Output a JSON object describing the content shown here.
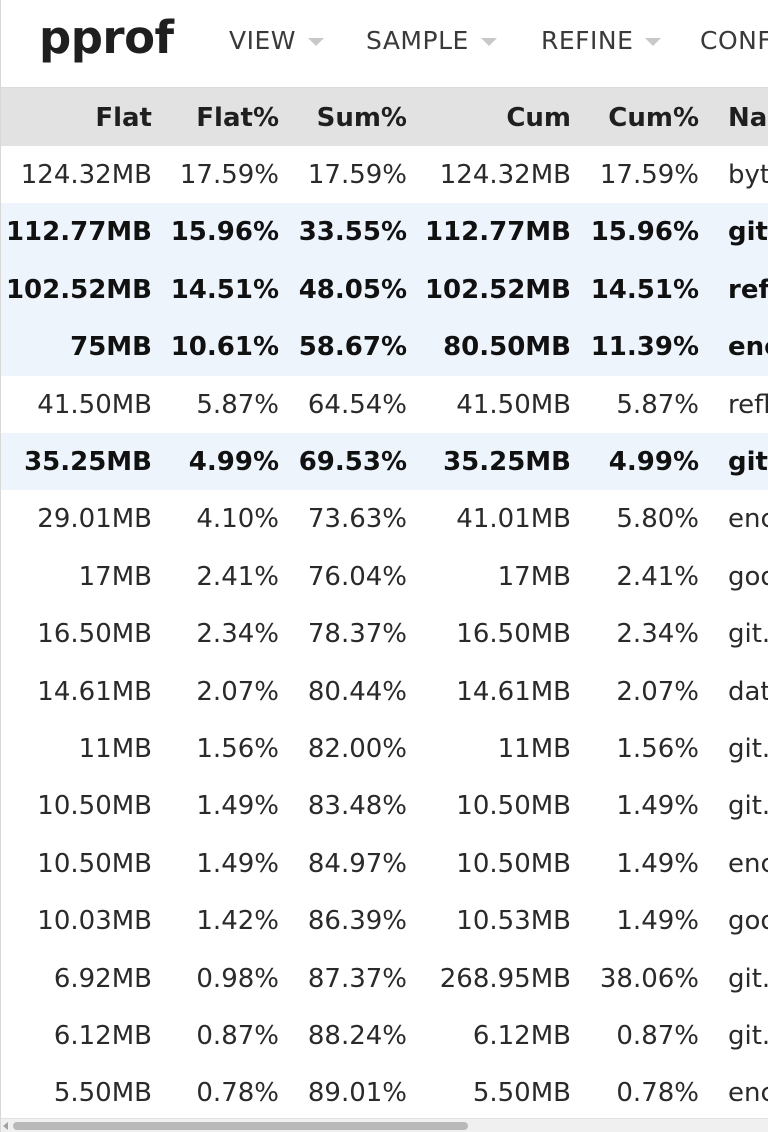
{
  "header": {
    "logo": "pprof",
    "menus": [
      {
        "label": "VIEW"
      },
      {
        "label": "SAMPLE"
      },
      {
        "label": "REFINE"
      },
      {
        "label": "CONF"
      }
    ]
  },
  "table": {
    "columns": [
      "Flat",
      "Flat%",
      "Sum%",
      "Cum",
      "Cum%",
      "Nar"
    ],
    "rows": [
      {
        "flat": "124.32MB",
        "flat_pct": "17.59%",
        "sum_pct": "17.59%",
        "cum": "124.32MB",
        "cum_pct": "17.59%",
        "name": "byt",
        "bold": false,
        "highlight": false
      },
      {
        "flat": "112.77MB",
        "flat_pct": "15.96%",
        "sum_pct": "33.55%",
        "cum": "112.77MB",
        "cum_pct": "15.96%",
        "name": "git.",
        "bold": true,
        "highlight": true
      },
      {
        "flat": "102.52MB",
        "flat_pct": "14.51%",
        "sum_pct": "48.05%",
        "cum": "102.52MB",
        "cum_pct": "14.51%",
        "name": "refl",
        "bold": true,
        "highlight": true
      },
      {
        "flat": "75MB",
        "flat_pct": "10.61%",
        "sum_pct": "58.67%",
        "cum": "80.50MB",
        "cum_pct": "11.39%",
        "name": "enc",
        "bold": true,
        "highlight": true
      },
      {
        "flat": "41.50MB",
        "flat_pct": "5.87%",
        "sum_pct": "64.54%",
        "cum": "41.50MB",
        "cum_pct": "5.87%",
        "name": "refl",
        "bold": false,
        "highlight": false
      },
      {
        "flat": "35.25MB",
        "flat_pct": "4.99%",
        "sum_pct": "69.53%",
        "cum": "35.25MB",
        "cum_pct": "4.99%",
        "name": "git.",
        "bold": true,
        "highlight": true
      },
      {
        "flat": "29.01MB",
        "flat_pct": "4.10%",
        "sum_pct": "73.63%",
        "cum": "41.01MB",
        "cum_pct": "5.80%",
        "name": "enc",
        "bold": false,
        "highlight": false
      },
      {
        "flat": "17MB",
        "flat_pct": "2.41%",
        "sum_pct": "76.04%",
        "cum": "17MB",
        "cum_pct": "2.41%",
        "name": "goo",
        "bold": false,
        "highlight": false
      },
      {
        "flat": "16.50MB",
        "flat_pct": "2.34%",
        "sum_pct": "78.37%",
        "cum": "16.50MB",
        "cum_pct": "2.34%",
        "name": "git.",
        "bold": false,
        "highlight": false
      },
      {
        "flat": "14.61MB",
        "flat_pct": "2.07%",
        "sum_pct": "80.44%",
        "cum": "14.61MB",
        "cum_pct": "2.07%",
        "name": "dat",
        "bold": false,
        "highlight": false
      },
      {
        "flat": "11MB",
        "flat_pct": "1.56%",
        "sum_pct": "82.00%",
        "cum": "11MB",
        "cum_pct": "1.56%",
        "name": "git.",
        "bold": false,
        "highlight": false
      },
      {
        "flat": "10.50MB",
        "flat_pct": "1.49%",
        "sum_pct": "83.48%",
        "cum": "10.50MB",
        "cum_pct": "1.49%",
        "name": "git.",
        "bold": false,
        "highlight": false
      },
      {
        "flat": "10.50MB",
        "flat_pct": "1.49%",
        "sum_pct": "84.97%",
        "cum": "10.50MB",
        "cum_pct": "1.49%",
        "name": "enc",
        "bold": false,
        "highlight": false
      },
      {
        "flat": "10.03MB",
        "flat_pct": "1.42%",
        "sum_pct": "86.39%",
        "cum": "10.53MB",
        "cum_pct": "1.49%",
        "name": "goo",
        "bold": false,
        "highlight": false
      },
      {
        "flat": "6.92MB",
        "flat_pct": "0.98%",
        "sum_pct": "87.37%",
        "cum": "268.95MB",
        "cum_pct": "38.06%",
        "name": "git.",
        "bold": false,
        "highlight": false
      },
      {
        "flat": "6.12MB",
        "flat_pct": "0.87%",
        "sum_pct": "88.24%",
        "cum": "6.12MB",
        "cum_pct": "0.87%",
        "name": "git.",
        "bold": false,
        "highlight": false
      },
      {
        "flat": "5.50MB",
        "flat_pct": "0.78%",
        "sum_pct": "89.01%",
        "cum": "5.50MB",
        "cum_pct": "0.78%",
        "name": "enc",
        "bold": false,
        "highlight": false
      }
    ]
  },
  "colors": {
    "header_bg": "#e2e2e2",
    "row_highlight": "#edf4fc"
  }
}
